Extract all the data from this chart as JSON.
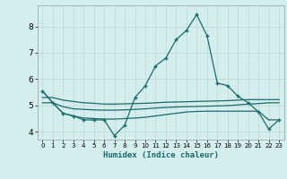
{
  "title": "",
  "xlabel": "Humidex (Indice chaleur)",
  "ylabel": "",
  "background_color": "#d4eeed",
  "grid_color": "#c0d8d4",
  "line_color": "#1a6b6b",
  "xlim": [
    -0.5,
    23.5
  ],
  "ylim": [
    3.7,
    8.8
  ],
  "xticks": [
    0,
    1,
    2,
    3,
    4,
    5,
    6,
    7,
    8,
    9,
    10,
    11,
    12,
    13,
    14,
    15,
    16,
    17,
    18,
    19,
    20,
    21,
    22,
    23
  ],
  "yticks": [
    4,
    5,
    6,
    7,
    8
  ],
  "series1": {
    "x": [
      0,
      1,
      2,
      3,
      4,
      5,
      6,
      7,
      8,
      9,
      10,
      11,
      12,
      13,
      14,
      15,
      16,
      17,
      18,
      19,
      20,
      21,
      22,
      23
    ],
    "y": [
      5.55,
      5.1,
      4.7,
      4.6,
      4.45,
      4.45,
      4.45,
      3.85,
      4.25,
      5.3,
      5.75,
      6.5,
      6.8,
      7.5,
      7.85,
      8.45,
      7.65,
      5.85,
      5.75,
      5.35,
      5.1,
      4.75,
      4.1,
      4.45
    ]
  },
  "series2": {
    "x": [
      0,
      1,
      2,
      3,
      4,
      5,
      6,
      7,
      8,
      9,
      10,
      11,
      12,
      13,
      14,
      15,
      16,
      17,
      18,
      19,
      20,
      21,
      22,
      23
    ],
    "y": [
      5.1,
      5.1,
      4.95,
      4.87,
      4.85,
      4.83,
      4.82,
      4.82,
      4.83,
      4.85,
      4.87,
      4.9,
      4.92,
      4.94,
      4.95,
      4.96,
      4.97,
      4.98,
      4.99,
      5.02,
      5.05,
      5.07,
      5.1,
      5.1
    ]
  },
  "series3": {
    "x": [
      0,
      1,
      2,
      3,
      4,
      5,
      6,
      7,
      8,
      9,
      10,
      11,
      12,
      13,
      14,
      15,
      16,
      17,
      18,
      19,
      20,
      21,
      22,
      23
    ],
    "y": [
      5.55,
      5.1,
      4.7,
      4.6,
      4.52,
      4.5,
      4.48,
      4.48,
      4.5,
      4.52,
      4.55,
      4.6,
      4.65,
      4.7,
      4.75,
      4.77,
      4.78,
      4.78,
      4.78,
      4.78,
      4.78,
      4.78,
      4.45,
      4.45
    ]
  },
  "series4": {
    "x": [
      0,
      1,
      2,
      3,
      4,
      5,
      6,
      7,
      8,
      9,
      10,
      11,
      12,
      13,
      14,
      15,
      16,
      17,
      18,
      19,
      20,
      21,
      22,
      23
    ],
    "y": [
      5.3,
      5.3,
      5.2,
      5.15,
      5.1,
      5.08,
      5.05,
      5.05,
      5.06,
      5.07,
      5.08,
      5.1,
      5.12,
      5.13,
      5.14,
      5.15,
      5.16,
      5.17,
      5.18,
      5.2,
      5.22,
      5.22,
      5.22,
      5.22
    ]
  }
}
